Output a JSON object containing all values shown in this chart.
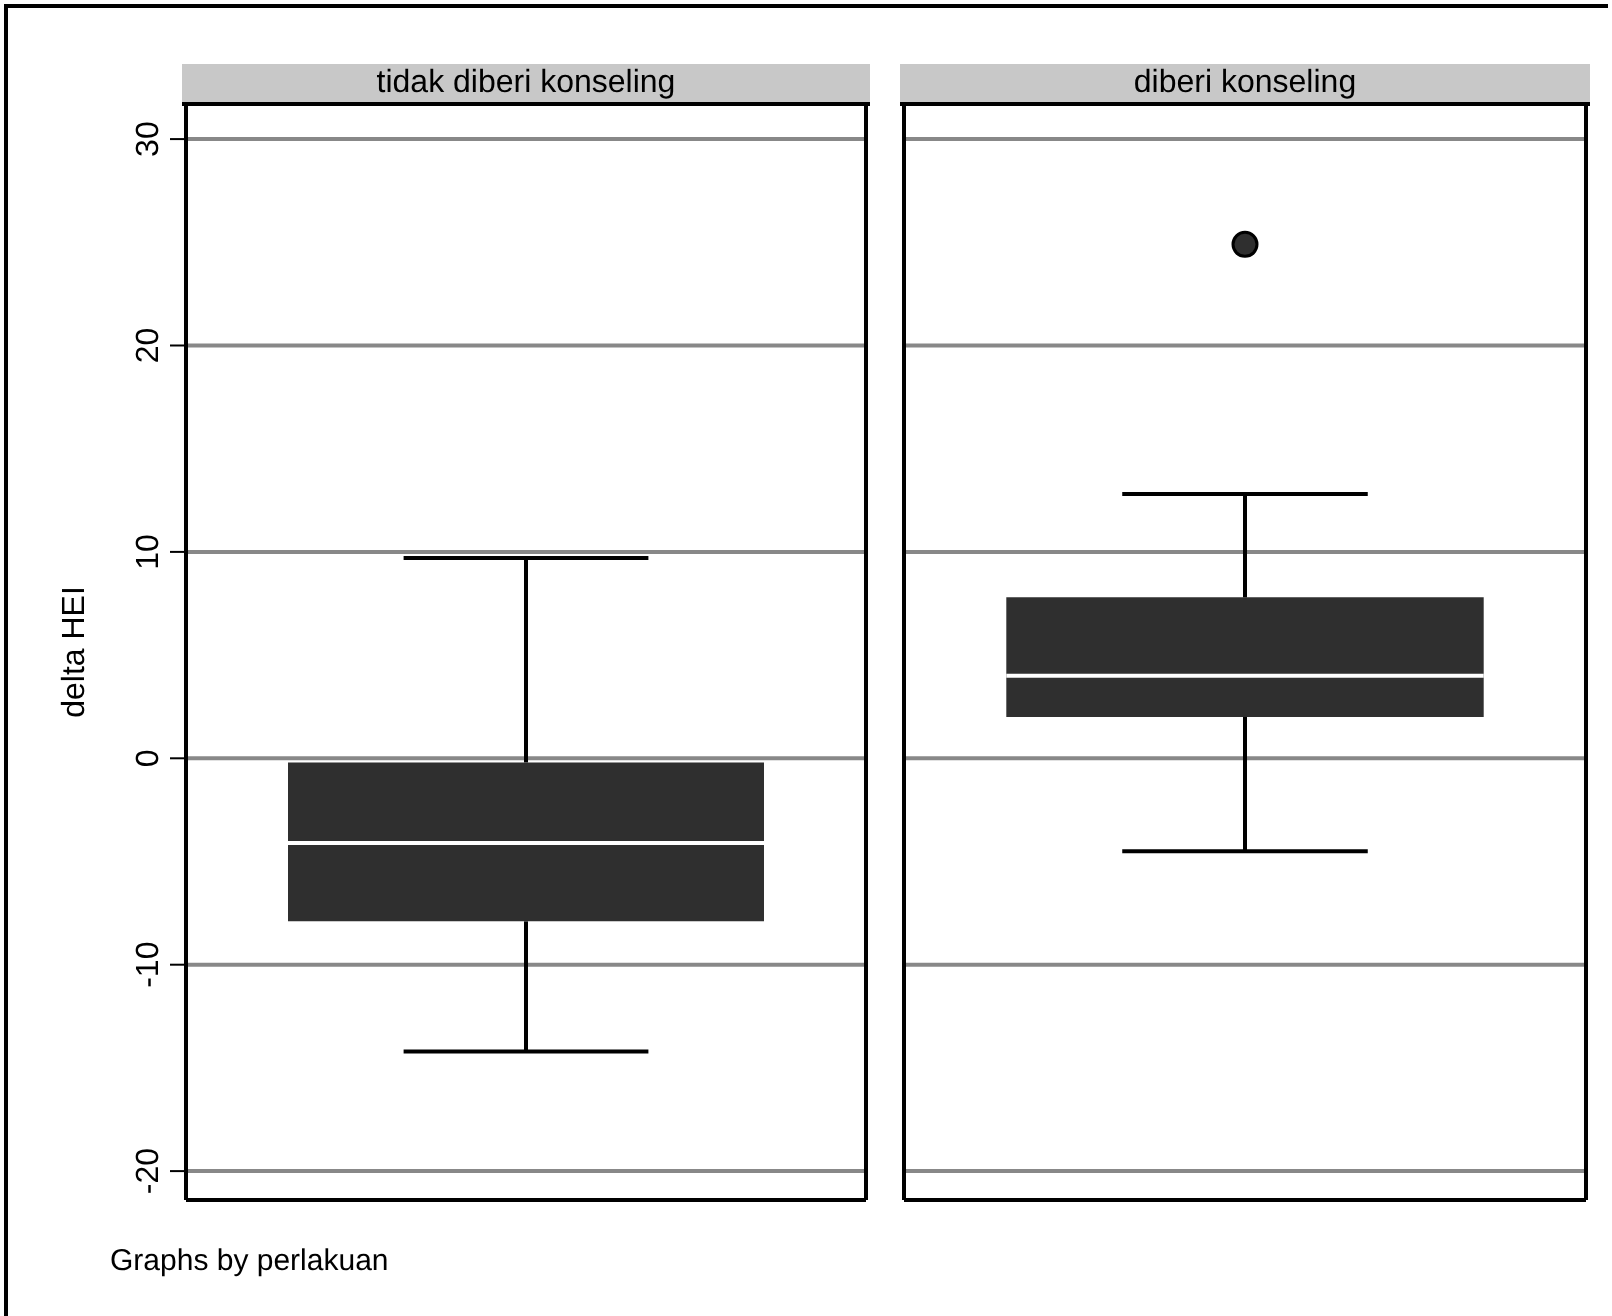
{
  "chart_data": {
    "type": "box",
    "ylabel": "delta HEI",
    "categories": [
      "tidak diberi konseling",
      "diberi konseling"
    ],
    "series": [
      {
        "color": "#2f2f2f",
        "boxes": [
          {
            "low": -14.2,
            "q1": -7.9,
            "median": -4.1,
            "q3": -0.2,
            "high": 9.7
          },
          {
            "low": -4.5,
            "q1": 2.0,
            "median": 4.0,
            "q3": 7.8,
            "high": 12.8,
            "outliers": [
              24.9
            ]
          }
        ]
      }
    ],
    "ylim": [
      -21.4,
      31.7
    ],
    "yticks": [
      -20,
      -10,
      0,
      10,
      20,
      30
    ],
    "grid": "y",
    "annotations": [
      "Graphs by perlakuan"
    ]
  }
}
